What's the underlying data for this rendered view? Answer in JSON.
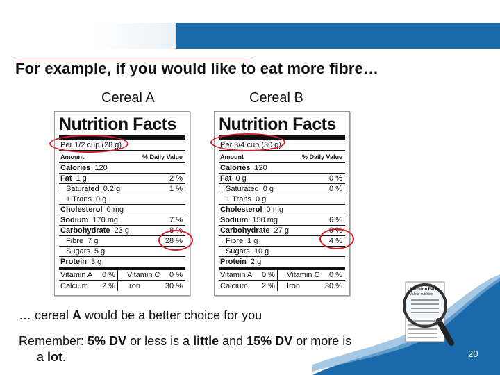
{
  "slide": {
    "title": "For example, if you would like to eat more fibre…",
    "page_number": "20"
  },
  "cereal_a": {
    "label": "Cereal A",
    "panel_title": "Nutrition Facts",
    "serving": "Per 1/2 cup (28 g)",
    "amount_header": "Amount",
    "dv_header": "% Daily Value",
    "rows": [
      {
        "name": "Calories",
        "amount": "120",
        "dv": ""
      },
      {
        "name": "Fat",
        "amount": "1 g",
        "dv": "2 %"
      },
      {
        "name": "Saturated",
        "amount": "0.2 g",
        "dv": "1 %"
      },
      {
        "name": "+ Trans",
        "amount": "0 g",
        "dv": ""
      },
      {
        "name": "Cholesterol",
        "amount": "0 mg",
        "dv": ""
      },
      {
        "name": "Sodium",
        "amount": "170 mg",
        "dv": "7 %"
      },
      {
        "name": "Carbohydrate",
        "amount": "23 g",
        "dv": "8 %"
      },
      {
        "name": "Fibre",
        "amount": "7 g",
        "dv": "28 %"
      },
      {
        "name": "Sugars",
        "amount": "5 g",
        "dv": ""
      },
      {
        "name": "Protein",
        "amount": "3 g",
        "dv": ""
      }
    ],
    "vitamins": [
      {
        "n1": "Vitamin A",
        "v1": "0 %",
        "n2": "Vitamin C",
        "v2": "0 %"
      },
      {
        "n1": "Calcium",
        "v1": "2 %",
        "n2": "Iron",
        "v2": "30 %"
      }
    ]
  },
  "cereal_b": {
    "label": "Cereal B",
    "panel_title": "Nutrition Facts",
    "serving": "Per 3/4 cup (30 g)",
    "amount_header": "Amount",
    "dv_header": "% Daily Value",
    "rows": [
      {
        "name": "Calories",
        "amount": "120",
        "dv": ""
      },
      {
        "name": "Fat",
        "amount": "0 g",
        "dv": "0 %"
      },
      {
        "name": "Saturated",
        "amount": "0 g",
        "dv": "0 %"
      },
      {
        "name": "+ Trans",
        "amount": "0 g",
        "dv": ""
      },
      {
        "name": "Cholesterol",
        "amount": "0 mg",
        "dv": ""
      },
      {
        "name": "Sodium",
        "amount": "150 mg",
        "dv": "6 %"
      },
      {
        "name": "Carbohydrate",
        "amount": "27 g",
        "dv": "9 %"
      },
      {
        "name": "Fibre",
        "amount": "1 g",
        "dv": "4 %"
      },
      {
        "name": "Sugars",
        "amount": "10 g",
        "dv": ""
      },
      {
        "name": "Protein",
        "amount": "2 g",
        "dv": ""
      }
    ],
    "vitamins": [
      {
        "n1": "Vitamin A",
        "v1": "0 %",
        "n2": "Vitamin C",
        "v2": "0 %"
      },
      {
        "n1": "Calcium",
        "v1": "2 %",
        "n2": "Iron",
        "v2": "30 %"
      }
    ]
  },
  "conclusion": {
    "prefix": "… cereal ",
    "emph": "A",
    "suffix": " would be a better choice for you"
  },
  "reminder": {
    "p1": "Remember: ",
    "b1": "5% DV",
    "p2": " or less is a ",
    "b2": "little",
    "p3": " and ",
    "b3": "15% DV",
    "p4": " or more is",
    "p5": "a ",
    "b4": "lot",
    "p6": "."
  },
  "colors": {
    "accent_blue": "#1a6aab",
    "highlight_red": "#d0202a"
  },
  "decoration": {
    "magnifier_icon": "magnifier-icon",
    "mini_label_title": "Nutrition Facts",
    "mini_label_subtitle": "Valeur nutritive"
  }
}
